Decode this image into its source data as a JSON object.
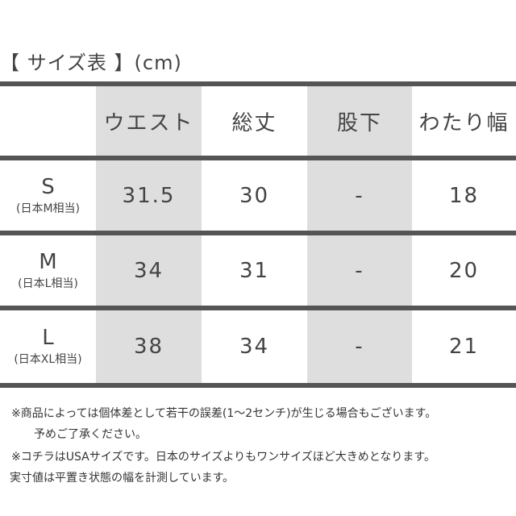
{
  "title": "【 サイズ表 】(cm)",
  "table": {
    "headers": [
      "ウエスト",
      "総丈",
      "股下",
      "わたり幅"
    ],
    "rows": [
      {
        "size": "S",
        "equiv": "(日本M相当)",
        "values": [
          "31.5",
          "30",
          "-",
          "18"
        ]
      },
      {
        "size": "M",
        "equiv": "(日本L相当)",
        "values": [
          "34",
          "31",
          "-",
          "20"
        ]
      },
      {
        "size": "L",
        "equiv": "(日本XL相当)",
        "values": [
          "38",
          "34",
          "-",
          "21"
        ]
      }
    ],
    "colors": {
      "border": "#555555",
      "shade": "#dedede"
    }
  },
  "notes": [
    "※商品によっては個体差として若干の誤差(1〜2センチ)が生じる場合もございます。",
    "予めご了承ください。",
    "※コチラはUSAサイズです。日本のサイズよりもワンサイズほど大きめとなります。",
    "実寸値は平置き状態の幅を計測しています。"
  ]
}
